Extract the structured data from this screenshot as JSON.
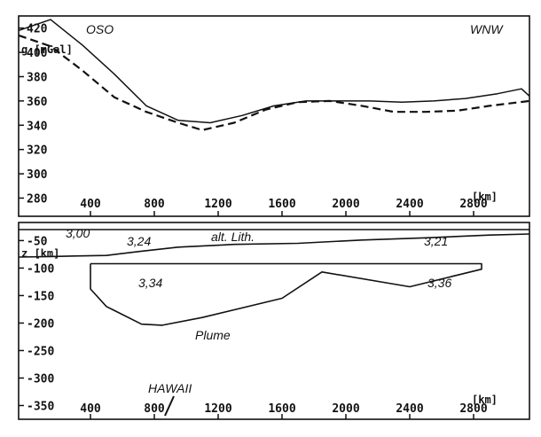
{
  "chart_data": [
    {
      "type": "line",
      "corner_labels": {
        "left": "OSO",
        "right": "WNW"
      },
      "ylabel": "g [mGal]",
      "xlabel": "[km]",
      "x_ticks": [
        "400",
        "800",
        "1200",
        "1600",
        "2000",
        "2400",
        "2800"
      ],
      "y_ticks": [
        "420",
        "400",
        "380",
        "360",
        "340",
        "320",
        "300",
        "280"
      ],
      "xlim": [
        -50,
        3150
      ],
      "ylim": [
        265,
        430
      ],
      "series": [
        {
          "style": "solid",
          "x": [
            -50,
            150,
            350,
            550,
            750,
            950,
            1150,
            1350,
            1550,
            1750,
            1950,
            2150,
            2350,
            2550,
            2750,
            2950,
            3100,
            3150
          ],
          "y": [
            418,
            427,
            406,
            382,
            356,
            344,
            342,
            348,
            356,
            360,
            360,
            360,
            359,
            360,
            362,
            366,
            370,
            364
          ]
        },
        {
          "style": "dashed",
          "x": [
            -50,
            150,
            350,
            550,
            750,
            950,
            1100,
            1300,
            1500,
            1700,
            1900,
            2100,
            2300,
            2500,
            2700,
            2900,
            3150
          ],
          "y": [
            414,
            405,
            385,
            363,
            351,
            342,
            336,
            342,
            353,
            359,
            360,
            356,
            351,
            351,
            352,
            356,
            360
          ]
        }
      ]
    },
    {
      "type": "line",
      "ylabel": "z [km]",
      "xlabel": "[km]",
      "x_ticks": [
        "400",
        "800",
        "1200",
        "1600",
        "2000",
        "2400",
        "2800"
      ],
      "y_ticks": [
        "-50",
        "-100",
        "-150",
        "-200",
        "-250",
        "-300",
        "-350"
      ],
      "xlim": [
        -50,
        3150
      ],
      "ylim": [
        -375,
        -30
      ],
      "annotations": {
        "density_labels": [
          "3,00",
          "3,24",
          "3,21",
          "3,34",
          "3,36"
        ],
        "lithosphere_label": "alt. Lith.",
        "plume_label": "Plume",
        "location_label": "HAWAII"
      },
      "lithosphere_base": {
        "x": [
          -50,
          150,
          300,
          500,
          700,
          950,
          1300,
          1700,
          2100,
          2500,
          2900,
          3150
        ],
        "y": [
          -80,
          -79,
          -78,
          -77,
          -70,
          -62,
          -57,
          -55,
          -49,
          -45,
          -40,
          -38
        ]
      },
      "plume_outline": {
        "x": [
          400,
          400,
          500,
          720,
          850,
          1100,
          1600,
          1850,
          2400,
          2850,
          2850,
          400
        ],
        "y": [
          -92,
          -138,
          -170,
          -202,
          -204,
          -190,
          -155,
          -107,
          -134,
          -102,
          -92,
          -92
        ]
      },
      "markers": {
        "hawaii_x": 900
      }
    }
  ]
}
